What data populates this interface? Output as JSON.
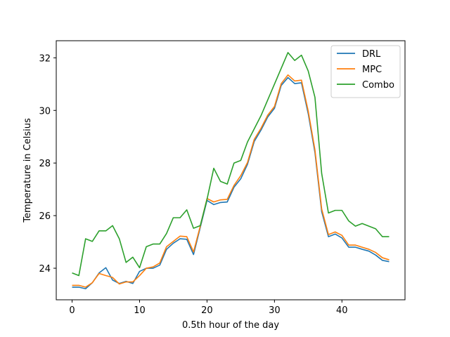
{
  "chart_data": {
    "type": "line",
    "title": "",
    "xlabel": "0.5th hour of the day",
    "ylabel": "Temperature in Celsius",
    "xlim": [
      -2.35,
      49.35
    ],
    "ylim": [
      22.8,
      32.65
    ],
    "xticks": [
      0,
      10,
      20,
      30,
      40
    ],
    "yticks": [
      24,
      26,
      28,
      30,
      32
    ],
    "grid": false,
    "legend_position": "top-right",
    "x": [
      0,
      1,
      2,
      3,
      4,
      5,
      6,
      7,
      8,
      9,
      10,
      11,
      12,
      13,
      14,
      15,
      16,
      17,
      18,
      19,
      20,
      21,
      22,
      23,
      24,
      25,
      26,
      27,
      28,
      29,
      30,
      31,
      32,
      33,
      34,
      35,
      36,
      37,
      38,
      39,
      40,
      41,
      42,
      43,
      44,
      45,
      46,
      47
    ],
    "series": [
      {
        "name": "DRL",
        "color": "#1f77b4",
        "values": [
          23.28,
          23.28,
          23.22,
          23.45,
          23.82,
          24.02,
          23.55,
          23.42,
          23.5,
          23.42,
          23.88,
          24.0,
          24.0,
          24.12,
          24.72,
          24.95,
          25.12,
          25.1,
          24.52,
          25.55,
          26.58,
          26.42,
          26.5,
          26.52,
          27.08,
          27.4,
          27.95,
          28.82,
          29.25,
          29.75,
          30.08,
          30.95,
          31.25,
          31.02,
          31.05,
          29.88,
          28.4,
          26.15,
          25.2,
          25.3,
          25.15,
          24.8,
          24.8,
          24.72,
          24.65,
          24.5,
          24.3,
          24.25
        ]
      },
      {
        "name": "MPC",
        "color": "#ff7f0e",
        "values": [
          23.35,
          23.35,
          23.28,
          23.45,
          23.8,
          23.72,
          23.65,
          23.4,
          23.48,
          23.48,
          23.72,
          24.0,
          24.05,
          24.2,
          24.82,
          25.02,
          25.22,
          25.2,
          24.62,
          25.6,
          26.65,
          26.52,
          26.6,
          26.62,
          27.15,
          27.52,
          28.02,
          28.9,
          29.32,
          29.82,
          30.15,
          31.02,
          31.35,
          31.12,
          31.15,
          29.98,
          28.5,
          26.25,
          25.28,
          25.38,
          25.25,
          24.88,
          24.88,
          24.8,
          24.72,
          24.6,
          24.4,
          24.32
        ]
      },
      {
        "name": "Combo",
        "color": "#2ca02c",
        "values": [
          23.82,
          23.72,
          25.12,
          25.02,
          25.42,
          25.42,
          25.62,
          25.12,
          24.22,
          24.42,
          24.02,
          24.82,
          24.92,
          24.92,
          25.32,
          25.92,
          25.92,
          26.22,
          25.52,
          25.62,
          26.62,
          27.8,
          27.3,
          27.2,
          28.0,
          28.1,
          28.8,
          29.3,
          29.8,
          30.4,
          31.0,
          31.6,
          32.2,
          31.9,
          32.1,
          31.5,
          30.5,
          27.6,
          26.1,
          26.2,
          26.2,
          25.8,
          25.6,
          25.7,
          25.6,
          25.5,
          25.2,
          25.2
        ]
      }
    ]
  }
}
